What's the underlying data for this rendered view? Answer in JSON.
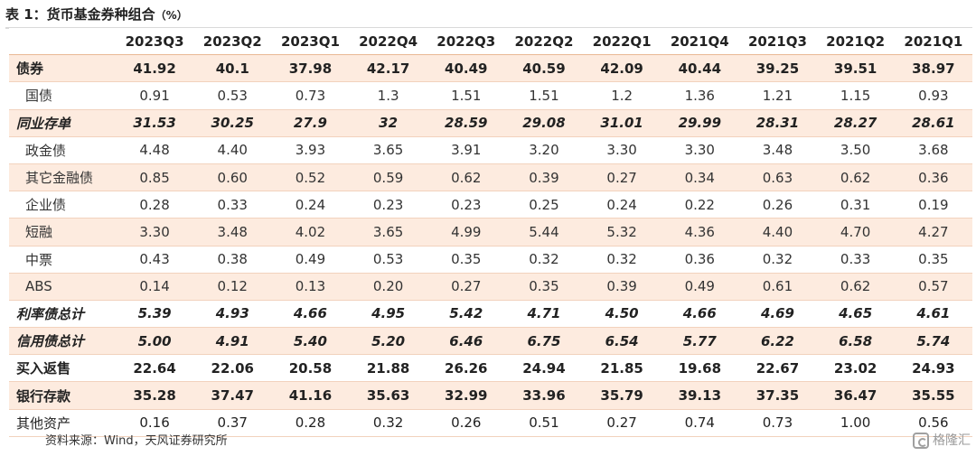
{
  "title": "表 1：货币基金券种组合",
  "title_unit": "（%）",
  "columns": [
    "2023Q3",
    "2023Q2",
    "2023Q1",
    "2022Q4",
    "2022Q3",
    "2022Q2",
    "2022Q1",
    "2021Q4",
    "2021Q3",
    "2021Q2",
    "2021Q1"
  ],
  "rows": [
    {
      "label": "债券",
      "values": [
        "41.92",
        "40.1",
        "37.98",
        "42.17",
        "40.49",
        "40.59",
        "42.09",
        "40.44",
        "39.25",
        "39.51",
        "38.97"
      ]
    },
    {
      "label": "国债",
      "values": [
        "0.91",
        "0.53",
        "0.73",
        "1.3",
        "1.51",
        "1.51",
        "1.2",
        "1.36",
        "1.21",
        "1.15",
        "0.93"
      ]
    },
    {
      "label": "同业存单",
      "values": [
        "31.53",
        "30.25",
        "27.9",
        "32",
        "28.59",
        "29.08",
        "31.01",
        "29.99",
        "28.31",
        "28.27",
        "28.61"
      ]
    },
    {
      "label": "政金债",
      "values": [
        "4.48",
        "4.40",
        "3.93",
        "3.65",
        "3.91",
        "3.20",
        "3.30",
        "3.30",
        "3.48",
        "3.50",
        "3.68"
      ]
    },
    {
      "label": "其它金融债",
      "values": [
        "0.85",
        "0.60",
        "0.52",
        "0.59",
        "0.62",
        "0.39",
        "0.27",
        "0.34",
        "0.63",
        "0.62",
        "0.36"
      ]
    },
    {
      "label": "企业债",
      "values": [
        "0.28",
        "0.33",
        "0.24",
        "0.23",
        "0.23",
        "0.25",
        "0.24",
        "0.22",
        "0.26",
        "0.31",
        "0.19"
      ]
    },
    {
      "label": "短融",
      "values": [
        "3.30",
        "3.48",
        "4.02",
        "3.65",
        "4.99",
        "5.44",
        "5.32",
        "4.36",
        "4.40",
        "4.70",
        "4.27"
      ]
    },
    {
      "label": "中票",
      "values": [
        "0.43",
        "0.38",
        "0.49",
        "0.53",
        "0.35",
        "0.32",
        "0.32",
        "0.36",
        "0.32",
        "0.33",
        "0.35"
      ]
    },
    {
      "label": "ABS",
      "values": [
        "0.14",
        "0.12",
        "0.13",
        "0.20",
        "0.27",
        "0.35",
        "0.39",
        "0.49",
        "0.61",
        "0.62",
        "0.57"
      ]
    },
    {
      "label": "利率债总计",
      "values": [
        "5.39",
        "4.93",
        "4.66",
        "4.95",
        "5.42",
        "4.71",
        "4.50",
        "4.66",
        "4.69",
        "4.65",
        "4.61"
      ]
    },
    {
      "label": "信用债总计",
      "values": [
        "5.00",
        "4.91",
        "5.40",
        "5.20",
        "6.46",
        "6.75",
        "6.54",
        "5.77",
        "6.22",
        "6.58",
        "5.74"
      ]
    },
    {
      "label": "买入返售",
      "values": [
        "22.64",
        "22.06",
        "20.58",
        "21.88",
        "26.26",
        "24.94",
        "21.85",
        "19.68",
        "22.67",
        "23.02",
        "24.93"
      ]
    },
    {
      "label": "银行存款",
      "values": [
        "35.28",
        "37.47",
        "41.16",
        "35.63",
        "32.99",
        "33.96",
        "35.79",
        "39.13",
        "37.35",
        "36.47",
        "35.55"
      ]
    },
    {
      "label": "其他资产",
      "values": [
        "0.16",
        "0.37",
        "0.28",
        "0.32",
        "0.26",
        "0.51",
        "0.27",
        "0.74",
        "0.73",
        "1.00",
        "0.56"
      ]
    }
  ],
  "source": "资料来源：Wind，天风证券研究所",
  "watermark": "格隆汇"
}
